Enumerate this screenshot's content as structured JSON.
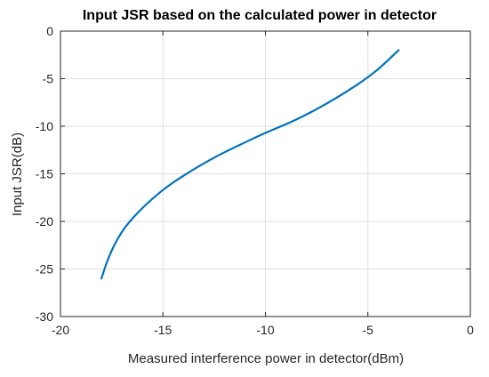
{
  "chart_data": {
    "type": "line",
    "title": "Input JSR based on the calculated power in detector",
    "xlabel": "Measured interference power in detector(dBm)",
    "ylabel": "Input JSR(dB)",
    "xlim": [
      -20,
      0
    ],
    "ylim": [
      -30,
      0
    ],
    "xticks": [
      -20,
      -15,
      -10,
      -5,
      0
    ],
    "yticks": [
      0,
      -5,
      -10,
      -15,
      -20,
      -25,
      -30
    ],
    "xtick_labels": [
      "-20",
      "-15",
      "-10",
      "-5",
      "0"
    ],
    "ytick_labels": [
      "0",
      "-5",
      "-10",
      "-15",
      "-20",
      "-25",
      "-30"
    ],
    "grid": true,
    "legend": "none",
    "series": [
      {
        "color": "#0072bd",
        "x": [
          -18.0,
          -17.7,
          -17.3,
          -16.8,
          -16.0,
          -15.0,
          -14.0,
          -12.5,
          -11.0,
          -10.0,
          -8.5,
          -7.0,
          -5.5,
          -4.5,
          -3.5
        ],
        "y": [
          -26.0,
          -24.1,
          -22.2,
          -20.5,
          -18.6,
          -16.7,
          -15.2,
          -13.3,
          -11.7,
          -10.7,
          -9.3,
          -7.6,
          -5.6,
          -4.0,
          -2.0
        ]
      }
    ]
  }
}
